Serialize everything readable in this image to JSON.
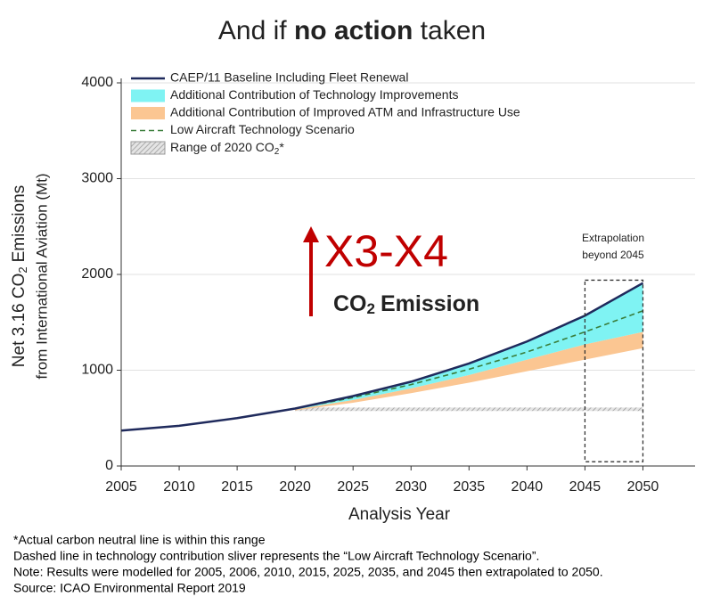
{
  "chart_data": {
    "type": "area",
    "title": {
      "before": "And if",
      "bold": "no action",
      "after": "taken"
    },
    "xlabel": "Analysis Year",
    "ylabel": {
      "line1_before": "Net 3.16 CO",
      "line1_sub": "2",
      "line1_after": "Emissions",
      "line2": "from International Aviation (Mt)"
    },
    "x": [
      2005,
      2010,
      2015,
      2020,
      2025,
      2030,
      2035,
      2040,
      2045,
      2050
    ],
    "xlim": [
      2005,
      2054.5
    ],
    "xticks": [
      2005,
      2010,
      2015,
      2020,
      2025,
      2030,
      2035,
      2040,
      2045,
      2050
    ],
    "ylim": [
      0,
      4000
    ],
    "yticks": [
      0,
      1000,
      2000,
      3000,
      4000
    ],
    "grid": true,
    "series": [
      {
        "name": "CAEP/11 Baseline Including Fleet Renewal",
        "color": "#1f2a5c",
        "style": "line",
        "values": [
          370,
          420,
          500,
          600,
          730,
          880,
          1070,
          1300,
          1570,
          1910
        ]
      },
      {
        "name": "Additional Contribution of Technology Improvements",
        "color": "#7ff3f3",
        "style": "band",
        "values": [
          null,
          null,
          null,
          600,
          730,
          880,
          1070,
          1300,
          1570,
          1910
        ],
        "lower": [
          null,
          null,
          null,
          590,
          690,
          810,
          950,
          1110,
          1270,
          1400
        ]
      },
      {
        "name": "Additional Contribution of Improved ATM and Infrastructure Use",
        "color": "#fbc692",
        "style": "band",
        "values": [
          null,
          null,
          null,
          590,
          690,
          810,
          950,
          1110,
          1270,
          1400
        ],
        "lower": [
          null,
          null,
          null,
          580,
          660,
          760,
          870,
          990,
          1110,
          1230
        ]
      },
      {
        "name": "Low Aircraft Technology Scenario",
        "color": "#3a7d3a",
        "style": "dashed",
        "values": [
          null,
          null,
          null,
          600,
          715,
          850,
          1010,
          1190,
          1400,
          1620
        ]
      },
      {
        "name_before": "Range of 2020 CO",
        "name_sub": "2",
        "name_after": "*",
        "color": "#aaaaaa",
        "style": "hatch",
        "values": [
          null,
          null,
          null,
          610,
          610,
          610,
          610,
          610,
          610,
          610
        ],
        "lower": [
          null,
          null,
          null,
          575,
          575,
          575,
          575,
          575,
          575,
          575
        ]
      }
    ],
    "extrapolation": {
      "label_line1": "Extrapolation",
      "label_line2": "beyond 2045",
      "x": [
        2045,
        2050
      ],
      "y": [
        45,
        1940
      ]
    },
    "annotation": {
      "big": "X3-X4",
      "text_before": "CO",
      "text_sub": "2",
      "text_after": "Emission",
      "color": "#c00000"
    },
    "notes": [
      "*Actual carbon neutral line is within this range",
      "Dashed line in technology contribution sliver represents the “Low Aircraft Technology Scenario”.",
      "Note: Results were modelled for 2005, 2006, 2010, 2015, 2025, 2035, and 2045 then extrapolated to 2050.",
      "Source: ICAO Environmental Report 2019"
    ]
  }
}
